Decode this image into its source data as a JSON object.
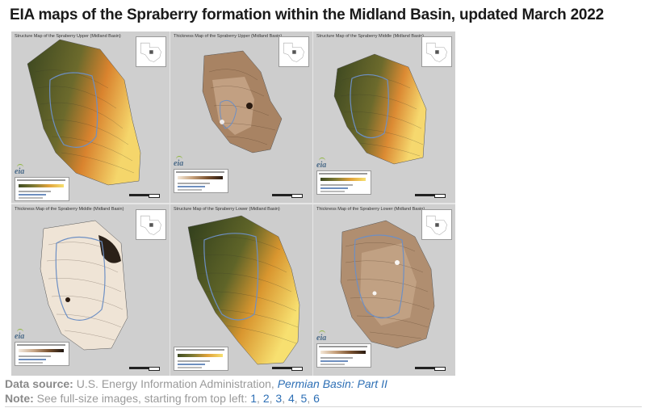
{
  "title": "EIA maps of the Spraberry formation within the Midland Basin, updated March 2022",
  "panels": [
    {
      "title": "Structure Map of the Spraberry Upper (Midland Basin)",
      "logo": "eia",
      "ramp": [
        "#3e4a22",
        "#7d7a34",
        "#e0a23a",
        "#f7e070"
      ]
    },
    {
      "title": "Thickness Map of the Spraberry Upper (Midland Basin)",
      "logo": "eia",
      "ramp": [
        "#f4e8d8",
        "#c6a07a",
        "#7a5230",
        "#2a1a10"
      ]
    },
    {
      "title": "Structure Map of the Spraberry Middle (Midland Basin)",
      "logo": "eia",
      "ramp": [
        "#3e4a22",
        "#7d7a34",
        "#e0a23a",
        "#f7e070"
      ]
    },
    {
      "title": "Thickness Map of the Spraberry Middle (Midland Basin)",
      "logo": "eia",
      "ramp": [
        "#f4ebe0",
        "#c9a889",
        "#7a5230",
        "#1e1510"
      ]
    },
    {
      "title": "Structure Map of the Spraberry Lower (Midland Basin)",
      "logo": "eia",
      "ramp": [
        "#3e4a22",
        "#7d7a34",
        "#e0a23a",
        "#f7e070"
      ]
    },
    {
      "title": "Thickness Map of the Spraberry Lower (Midland Basin)",
      "logo": "eia",
      "ramp": [
        "#f4e8d8",
        "#c6a07a",
        "#7a5230",
        "#2a1a10"
      ]
    }
  ],
  "footer": {
    "source_label": "Data source:",
    "source_text": "U.S. Energy Information Administration,",
    "source_link": "Permian Basin: Part II",
    "note_label": "Note:",
    "note_text": "See full-size images, starting from top left:",
    "links": [
      "1",
      "2",
      "3",
      "4",
      "5",
      "6"
    ]
  }
}
